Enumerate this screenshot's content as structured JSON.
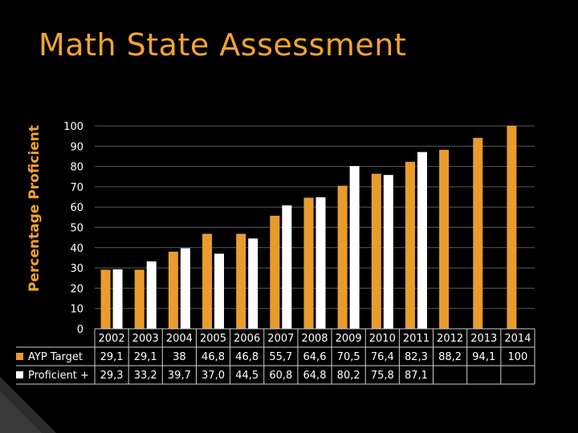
{
  "slide": {
    "title": "Math State Assessment",
    "accent_color": "#f5a331",
    "background": "#000000"
  },
  "chart_data": {
    "type": "bar",
    "title": "",
    "xlabel": "",
    "ylabel": "Percentage Proficient",
    "ylim": [
      0,
      100
    ],
    "yticks": [
      0,
      10,
      20,
      30,
      40,
      50,
      60,
      70,
      80,
      90,
      100
    ],
    "grid": true,
    "categories": [
      "2002",
      "2003",
      "2004",
      "2005",
      "2006",
      "2007",
      "2008",
      "2009",
      "2010",
      "2011",
      "2012",
      "2013",
      "2014"
    ],
    "series": [
      {
        "name": "AYP Target",
        "color": "#e99c2e",
        "values": [
          29.1,
          29.1,
          38,
          46.8,
          46.8,
          55.7,
          64.6,
          70.5,
          76.4,
          82.3,
          88.2,
          94.1,
          100
        ],
        "labels": [
          "29,1",
          "29,1",
          "38",
          "46,8",
          "46,8",
          "55,7",
          "64,6",
          "70,5",
          "76,4",
          "82,3",
          "88,2",
          "94,1",
          "100"
        ]
      },
      {
        "name": "Proficient +",
        "color": "#ffffff",
        "values": [
          29.3,
          33.2,
          39.7,
          37.0,
          44.5,
          60.8,
          64.8,
          80.2,
          75.8,
          87.1,
          null,
          null,
          null
        ],
        "labels": [
          "29,3",
          "33,2",
          "39,7",
          "37,0",
          "44,5",
          "60,8",
          "64,8",
          "80,2",
          "75,8",
          "87,1",
          "",
          "",
          ""
        ]
      }
    ]
  }
}
